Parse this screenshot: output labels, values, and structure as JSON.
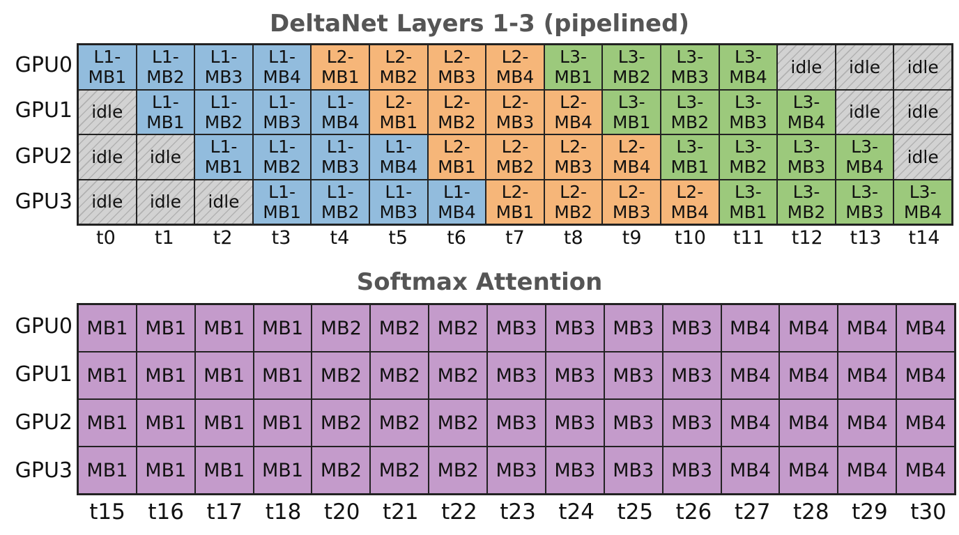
{
  "top": {
    "title": "DeltaNet Layers 1-3 (pipelined)",
    "rows": [
      "GPU0",
      "GPU1",
      "GPU2",
      "GPU3"
    ],
    "time_labels": [
      "t0",
      "t1",
      "t2",
      "t3",
      "t4",
      "t5",
      "t6",
      "t7",
      "t8",
      "t9",
      "t10",
      "t11",
      "t12",
      "t13",
      "t14"
    ],
    "idle_label": "idle",
    "cells": [
      [
        "L1-MB1",
        "L1-MB2",
        "L1-MB3",
        "L1-MB4",
        "L2-MB1",
        "L2-MB2",
        "L2-MB3",
        "L2-MB4",
        "L3-MB1",
        "L3-MB2",
        "L3-MB3",
        "L3-MB4",
        "idle",
        "idle",
        "idle"
      ],
      [
        "idle",
        "L1-MB1",
        "L1-MB2",
        "L1-MB3",
        "L1-MB4",
        "L2-MB1",
        "L2-MB2",
        "L2-MB3",
        "L2-MB4",
        "L3-MB1",
        "L3-MB2",
        "L3-MB3",
        "L3-MB4",
        "idle",
        "idle"
      ],
      [
        "idle",
        "idle",
        "L1-MB1",
        "L1-MB2",
        "L1-MB3",
        "L1-MB4",
        "L2-MB1",
        "L2-MB2",
        "L2-MB3",
        "L2-MB4",
        "L3-MB1",
        "L3-MB2",
        "L3-MB3",
        "L3-MB4",
        "idle"
      ],
      [
        "idle",
        "idle",
        "idle",
        "L1-MB1",
        "L1-MB2",
        "L1-MB3",
        "L1-MB4",
        "L2-MB1",
        "L2-MB2",
        "L2-MB3",
        "L2-MB4",
        "L3-MB1",
        "L3-MB2",
        "L3-MB3",
        "L3-MB4"
      ]
    ]
  },
  "bottom": {
    "title": "Softmax Attention",
    "rows": [
      "GPU0",
      "GPU1",
      "GPU2",
      "GPU3"
    ],
    "time_labels": [
      "t15",
      "t16",
      "t17",
      "t18",
      "t20",
      "t21",
      "t22",
      "t23",
      "t24",
      "t25",
      "t26",
      "t27",
      "t28",
      "t29",
      "t30"
    ],
    "cells": [
      [
        "MB1",
        "MB1",
        "MB1",
        "MB1",
        "MB2",
        "MB2",
        "MB2",
        "MB3",
        "MB3",
        "MB3",
        "MB3",
        "MB4",
        "MB4",
        "MB4",
        "MB4"
      ],
      [
        "MB1",
        "MB1",
        "MB1",
        "MB1",
        "MB2",
        "MB2",
        "MB2",
        "MB3",
        "MB3",
        "MB3",
        "MB3",
        "MB4",
        "MB4",
        "MB4",
        "MB4"
      ],
      [
        "MB1",
        "MB1",
        "MB1",
        "MB1",
        "MB2",
        "MB2",
        "MB2",
        "MB3",
        "MB3",
        "MB3",
        "MB3",
        "MB4",
        "MB4",
        "MB4",
        "MB4"
      ],
      [
        "MB1",
        "MB1",
        "MB1",
        "MB1",
        "MB2",
        "MB2",
        "MB2",
        "MB3",
        "MB3",
        "MB3",
        "MB3",
        "MB4",
        "MB4",
        "MB4",
        "MB4"
      ]
    ]
  },
  "colors": {
    "layer1": "#92bcdd",
    "layer2": "#f6b679",
    "layer3": "#9cc97c",
    "idle": "#d2d2d2",
    "attention": "#c49bcb",
    "title_text": "#555555"
  }
}
